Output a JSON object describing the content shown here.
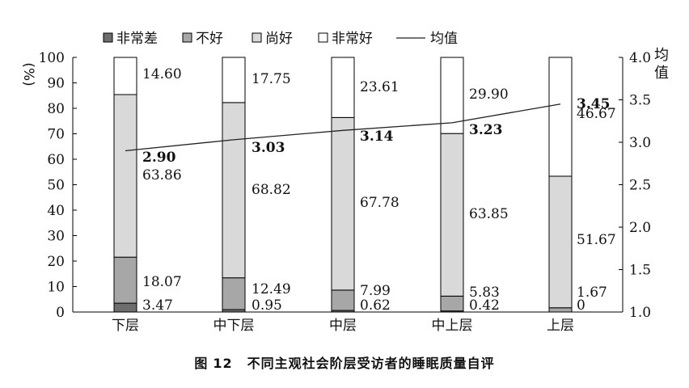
{
  "chart_data": {
    "type": "bar",
    "stacked": true,
    "categories": [
      "下层",
      "中下层",
      "中层",
      "中上层",
      "上层"
    ],
    "series": [
      {
        "name": "非常差",
        "color": "#6d6d6d",
        "values": [
          3.47,
          0.95,
          0.62,
          0.42,
          0
        ]
      },
      {
        "name": "不好",
        "color": "#a7a7a7",
        "values": [
          18.07,
          12.49,
          7.99,
          5.83,
          1.67
        ]
      },
      {
        "name": "尚好",
        "color": "#d9d9d9",
        "values": [
          63.86,
          68.82,
          67.78,
          63.85,
          51.67
        ]
      },
      {
        "name": "非常好",
        "color": "#ffffff",
        "values": [
          14.6,
          17.75,
          23.61,
          29.9,
          46.67
        ]
      }
    ],
    "line": {
      "name": "均值",
      "values": [
        2.9,
        3.03,
        3.14,
        3.23,
        3.45
      ]
    },
    "segment_labels": [
      [
        "3.47",
        "18.07",
        "63.86",
        "14.60"
      ],
      [
        "0.95",
        "12.49",
        "68.82",
        "17.75"
      ],
      [
        "0.62",
        "7.99",
        "67.78",
        "23.61"
      ],
      [
        "0.42",
        "5.83",
        "63.85",
        "29.90"
      ],
      [
        "0",
        "1.67",
        "51.67",
        "46.67"
      ]
    ],
    "mean_labels": [
      "2.90",
      "3.03",
      "3.14",
      "3.23",
      "3.45"
    ],
    "ylabel_left": "%",
    "ylabel_right": "均值",
    "ylim_left": [
      0,
      100
    ],
    "ylim_right": [
      1.0,
      4.0
    ],
    "left_ticks": [
      "0",
      "10",
      "20",
      "30",
      "40",
      "50",
      "60",
      "70",
      "80",
      "90",
      "100"
    ],
    "right_ticks": [
      "1.0",
      "1.5",
      "2.0",
      "2.5",
      "3.0",
      "3.5",
      "4.0"
    ],
    "legend_position": "top",
    "grid": false
  },
  "caption": {
    "label": "图",
    "number": "12",
    "text": "不同主观社会阶层受访者的睡眠质量自评"
  }
}
